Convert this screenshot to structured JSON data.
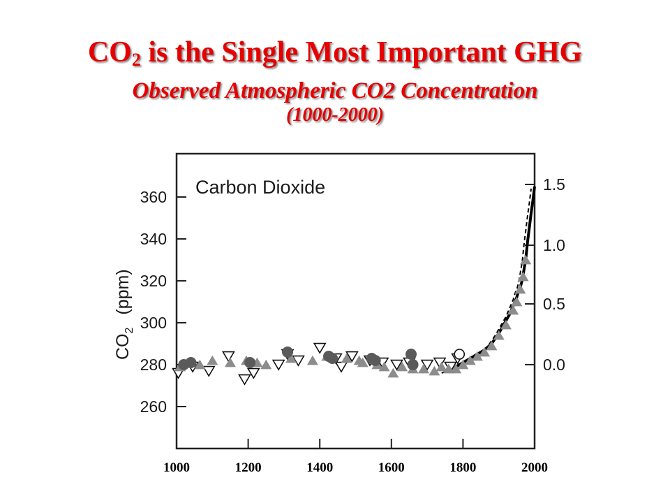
{
  "slide": {
    "title_main": "CO",
    "title_sub": "2",
    "title_rest": " is the Single Most Important GHG",
    "subtitle": "Observed Atmospheric CO2 Concentration",
    "subtitle2": "(1000-2000)"
  },
  "chart_data": {
    "type": "scatter",
    "inner_label": "Carbon Dioxide",
    "ylabel_main": "CO",
    "ylabel_sub": "2",
    "ylabel_unit": "(ppm)",
    "left_ticks": [
      260,
      280,
      300,
      320,
      340,
      360
    ],
    "right_ticks": [
      "0.0",
      "0.5",
      "1.0",
      "1.5"
    ],
    "right_tick_ppm": [
      280,
      309,
      337,
      366
    ],
    "x_ticks": [
      1000,
      1200,
      1400,
      1600,
      1800,
      2000
    ],
    "xlim": [
      1000,
      2000
    ],
    "ylim": [
      245,
      380
    ],
    "colors": {
      "gray_triangle": "#8c8c8c",
      "gray_circle": "#5a5a5a",
      "line": "#000000"
    },
    "series": [
      {
        "marker": "triangle-down-open",
        "points": [
          [
            1005,
            276
          ],
          [
            1045,
            279
          ],
          [
            1090,
            277
          ],
          [
            1145,
            284
          ],
          [
            1190,
            273
          ],
          [
            1215,
            276
          ],
          [
            1285,
            280
          ],
          [
            1310,
            285
          ],
          [
            1340,
            282
          ],
          [
            1400,
            288
          ],
          [
            1445,
            283
          ],
          [
            1460,
            279
          ],
          [
            1490,
            284
          ],
          [
            1540,
            282
          ],
          [
            1575,
            281
          ],
          [
            1615,
            280
          ],
          [
            1650,
            281
          ],
          [
            1700,
            280
          ],
          [
            1735,
            281
          ],
          [
            1765,
            279
          ],
          [
            1785,
            283
          ]
        ]
      },
      {
        "marker": "triangle-up-filled",
        "points": [
          [
            1010,
            279
          ],
          [
            1065,
            280
          ],
          [
            1100,
            282
          ],
          [
            1150,
            281
          ],
          [
            1195,
            282
          ],
          [
            1225,
            281
          ],
          [
            1250,
            280
          ],
          [
            1320,
            283
          ],
          [
            1380,
            282
          ],
          [
            1420,
            284
          ],
          [
            1475,
            283
          ],
          [
            1510,
            282
          ],
          [
            1520,
            281
          ],
          [
            1560,
            280
          ],
          [
            1580,
            279
          ],
          [
            1605,
            276
          ],
          [
            1630,
            279
          ],
          [
            1660,
            278
          ],
          [
            1690,
            278
          ],
          [
            1720,
            277
          ],
          [
            1740,
            279
          ],
          [
            1760,
            278
          ],
          [
            1780,
            278
          ],
          [
            1800,
            280
          ],
          [
            1820,
            282
          ],
          [
            1840,
            284
          ],
          [
            1860,
            286
          ],
          [
            1880,
            289
          ],
          [
            1900,
            294
          ],
          [
            1920,
            299
          ],
          [
            1940,
            306
          ],
          [
            1950,
            310
          ],
          [
            1960,
            316
          ],
          [
            1968,
            322
          ],
          [
            1975,
            330
          ]
        ]
      },
      {
        "marker": "circle-filled",
        "points": [
          [
            1020,
            280
          ],
          [
            1040,
            281
          ],
          [
            1205,
            281
          ],
          [
            1310,
            286
          ],
          [
            1425,
            284
          ],
          [
            1435,
            283
          ],
          [
            1545,
            283
          ],
          [
            1555,
            282
          ],
          [
            1655,
            285
          ],
          [
            1660,
            280
          ]
        ]
      },
      {
        "marker": "circle-open",
        "points": [
          [
            1790,
            285
          ]
        ]
      }
    ],
    "line": {
      "x": [
        1750,
        1780,
        1800,
        1820,
        1840,
        1860,
        1880,
        1900,
        1910,
        1920,
        1930,
        1940,
        1950,
        1955,
        1960,
        1965,
        1970,
        1975,
        1980,
        1985,
        1990,
        1995,
        2000
      ],
      "y": [
        277,
        279,
        281,
        283,
        285,
        287,
        290,
        295,
        298,
        301,
        304,
        308,
        312,
        315,
        317,
        320,
        325,
        330,
        338,
        345,
        352,
        358,
        365
      ]
    }
  }
}
